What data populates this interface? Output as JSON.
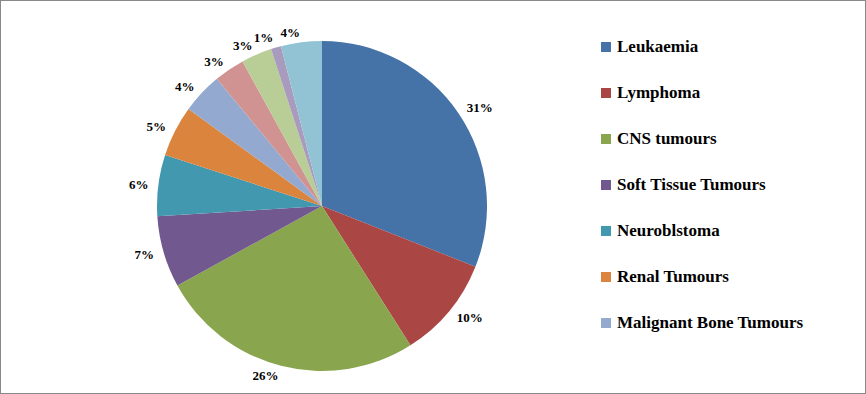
{
  "chart_data": {
    "type": "pie",
    "categories": [
      "Leukaemia",
      "Lymphoma",
      "CNS tumours",
      "Soft Tissue Tumours",
      "Neuroblstoma",
      "Renal Tumours",
      "Malignant Bone Tumours",
      null,
      null,
      null,
      null
    ],
    "values": [
      31,
      10,
      26,
      7,
      6,
      5,
      4,
      3,
      3,
      1,
      4
    ],
    "value_labels": [
      "31%",
      "10%",
      "26%",
      "7%",
      "6%",
      "5%",
      "4%",
      "3%",
      "3%",
      "1%",
      "4%"
    ],
    "colors": [
      "#4572A7",
      "#AA4643",
      "#89A54E",
      "#71588F",
      "#4198AF",
      "#DB843D",
      "#93A9CF",
      "#D19392",
      "#B9CD96",
      "#A99BBD",
      "#92C3D4"
    ],
    "data_labels": true,
    "legend": "right"
  }
}
